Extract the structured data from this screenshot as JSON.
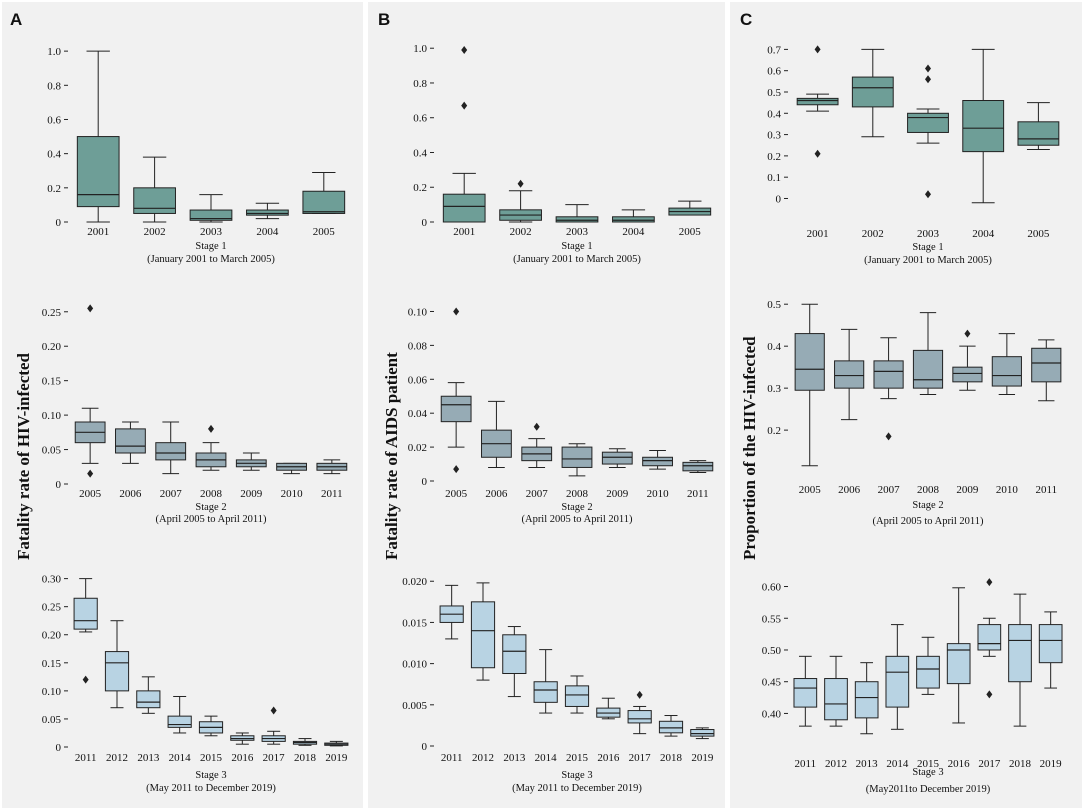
{
  "panels": {
    "a": {
      "letter": "A",
      "ylabel": "Fatality rate of HIV-infected"
    },
    "b": {
      "letter": "B",
      "ylabel": "Fatality rate of AIDS patient"
    },
    "c": {
      "letter": "C",
      "ylabel": "Proportion of the HIV-infected"
    }
  },
  "colors": {
    "stage1": "#6e9e97",
    "stage2": "#96abb5",
    "stage3": "#b8d3e3",
    "panel_bg": "#f1f1f1",
    "line": "#222222"
  },
  "chart_data": [
    {
      "id": "a1",
      "type": "box",
      "panel": "A",
      "color": "stage1",
      "categories": [
        "2001",
        "2002",
        "2003",
        "2004",
        "2005"
      ],
      "yticks": [
        {
          "v": 0,
          "label": "0"
        },
        {
          "v": 0.2,
          "label": "0.2"
        },
        {
          "v": 0.4,
          "label": "0.4"
        },
        {
          "v": 0.6,
          "label": "0.6"
        },
        {
          "v": 0.8,
          "label": "0.8"
        },
        {
          "v": 1.0,
          "label": "1.0"
        }
      ],
      "ylim": [
        0,
        1.03
      ],
      "boxes": [
        {
          "min": 0.0,
          "q1": 0.09,
          "median": 0.16,
          "q3": 0.5,
          "max": 1.0,
          "outliers": []
        },
        {
          "min": 0.0,
          "q1": 0.05,
          "median": 0.08,
          "q3": 0.2,
          "max": 0.38,
          "outliers": []
        },
        {
          "min": 0.0,
          "q1": 0.01,
          "median": 0.02,
          "q3": 0.07,
          "max": 0.16,
          "outliers": []
        },
        {
          "min": 0.02,
          "q1": 0.04,
          "median": 0.05,
          "q3": 0.07,
          "max": 0.11,
          "outliers": []
        },
        {
          "min": 0.05,
          "q1": 0.05,
          "median": 0.06,
          "q3": 0.18,
          "max": 0.29,
          "outliers": []
        }
      ],
      "xlabel_line1": "Stage 1",
      "xlabel_line2": "(January 2001 to March 2005)"
    },
    {
      "id": "a2",
      "type": "box",
      "panel": "A",
      "color": "stage2",
      "categories": [
        "2005",
        "2006",
        "2007",
        "2008",
        "2009",
        "2010",
        "2011"
      ],
      "yticks": [
        {
          "v": 0,
          "label": "0"
        },
        {
          "v": 0.05,
          "label": "0.05"
        },
        {
          "v": 0.1,
          "label": "0.10"
        },
        {
          "v": 0.15,
          "label": "0.15"
        },
        {
          "v": 0.2,
          "label": "0.20"
        },
        {
          "v": 0.25,
          "label": "0.25"
        }
      ],
      "ylim": [
        0,
        0.27
      ],
      "boxes": [
        {
          "min": 0.03,
          "q1": 0.06,
          "median": 0.075,
          "q3": 0.09,
          "max": 0.11,
          "outliers": [
            0.015,
            0.255
          ]
        },
        {
          "min": 0.03,
          "q1": 0.045,
          "median": 0.055,
          "q3": 0.08,
          "max": 0.09,
          "outliers": []
        },
        {
          "min": 0.015,
          "q1": 0.035,
          "median": 0.045,
          "q3": 0.06,
          "max": 0.09,
          "outliers": []
        },
        {
          "min": 0.02,
          "q1": 0.025,
          "median": 0.035,
          "q3": 0.045,
          "max": 0.06,
          "outliers": [
            0.08
          ]
        },
        {
          "min": 0.02,
          "q1": 0.025,
          "median": 0.03,
          "q3": 0.035,
          "max": 0.045,
          "outliers": []
        },
        {
          "min": 0.015,
          "q1": 0.02,
          "median": 0.025,
          "q3": 0.03,
          "max": 0.03,
          "outliers": []
        },
        {
          "min": 0.015,
          "q1": 0.02,
          "median": 0.025,
          "q3": 0.03,
          "max": 0.035,
          "outliers": []
        }
      ],
      "xlabel_line1": "Stage 2",
      "xlabel_line2": "(April 2005 to April 2011)"
    },
    {
      "id": "a3",
      "type": "box",
      "panel": "A",
      "color": "stage3",
      "categories": [
        "2011",
        "2012",
        "2013",
        "2014",
        "2015",
        "2016",
        "2017",
        "2018",
        "2019"
      ],
      "yticks": [
        {
          "v": 0,
          "label": "0"
        },
        {
          "v": 0.05,
          "label": "0.05"
        },
        {
          "v": 0.1,
          "label": "0.10"
        },
        {
          "v": 0.15,
          "label": "0.15"
        },
        {
          "v": 0.2,
          "label": "0.20"
        },
        {
          "v": 0.25,
          "label": "0.25"
        },
        {
          "v": 0.3,
          "label": "0.30"
        }
      ],
      "ylim": [
        0,
        0.31
      ],
      "boxes": [
        {
          "min": 0.205,
          "q1": 0.21,
          "median": 0.225,
          "q3": 0.265,
          "max": 0.3,
          "outliers": [
            0.12
          ]
        },
        {
          "min": 0.07,
          "q1": 0.1,
          "median": 0.15,
          "q3": 0.17,
          "max": 0.225,
          "outliers": []
        },
        {
          "min": 0.06,
          "q1": 0.07,
          "median": 0.08,
          "q3": 0.1,
          "max": 0.125,
          "outliers": []
        },
        {
          "min": 0.025,
          "q1": 0.035,
          "median": 0.04,
          "q3": 0.055,
          "max": 0.09,
          "outliers": []
        },
        {
          "min": 0.02,
          "q1": 0.025,
          "median": 0.035,
          "q3": 0.045,
          "max": 0.055,
          "outliers": []
        },
        {
          "min": 0.005,
          "q1": 0.012,
          "median": 0.015,
          "q3": 0.02,
          "max": 0.025,
          "outliers": []
        },
        {
          "min": 0.005,
          "q1": 0.01,
          "median": 0.015,
          "q3": 0.02,
          "max": 0.028,
          "outliers": [
            0.065
          ]
        },
        {
          "min": 0.003,
          "q1": 0.005,
          "median": 0.008,
          "q3": 0.01,
          "max": 0.015,
          "outliers": []
        },
        {
          "min": 0.002,
          "q1": 0.003,
          "median": 0.005,
          "q3": 0.007,
          "max": 0.01,
          "outliers": []
        }
      ],
      "xlabel_line1": "Stage 3",
      "xlabel_line2": "(May 2011 to December 2019)"
    },
    {
      "id": "b1",
      "type": "box",
      "panel": "B",
      "color": "stage1",
      "categories": [
        "2001",
        "2002",
        "2003",
        "2004",
        "2005"
      ],
      "yticks": [
        {
          "v": 0,
          "label": "0"
        },
        {
          "v": 0.2,
          "label": "0.2"
        },
        {
          "v": 0.4,
          "label": "0.4"
        },
        {
          "v": 0.6,
          "label": "0.6"
        },
        {
          "v": 0.8,
          "label": "0.8"
        },
        {
          "v": 1.0,
          "label": "1.0"
        }
      ],
      "ylim": [
        0,
        1.03
      ],
      "boxes": [
        {
          "min": 0.0,
          "q1": 0.0,
          "median": 0.09,
          "q3": 0.16,
          "max": 0.28,
          "outliers": [
            0.67,
            0.99
          ]
        },
        {
          "min": 0.0,
          "q1": 0.01,
          "median": 0.04,
          "q3": 0.07,
          "max": 0.18,
          "outliers": [
            0.22
          ]
        },
        {
          "min": 0.0,
          "q1": 0.0,
          "median": 0.01,
          "q3": 0.03,
          "max": 0.1,
          "outliers": []
        },
        {
          "min": 0.0,
          "q1": 0.0,
          "median": 0.01,
          "q3": 0.03,
          "max": 0.07,
          "outliers": []
        },
        {
          "min": 0.04,
          "q1": 0.04,
          "median": 0.06,
          "q3": 0.08,
          "max": 0.12,
          "outliers": []
        }
      ],
      "xlabel_line1": "Stage 1",
      "xlabel_line2": "(January 2001 to March 2005)"
    },
    {
      "id": "b2",
      "type": "box",
      "panel": "B",
      "color": "stage2",
      "categories": [
        "2005",
        "2006",
        "2007",
        "2008",
        "2009",
        "2010",
        "2011"
      ],
      "yticks": [
        {
          "v": 0,
          "label": "0"
        },
        {
          "v": 0.02,
          "label": "0.02"
        },
        {
          "v": 0.04,
          "label": "0.04"
        },
        {
          "v": 0.06,
          "label": "0.06"
        },
        {
          "v": 0.08,
          "label": "0.08"
        },
        {
          "v": 0.1,
          "label": "0.10"
        }
      ],
      "ylim": [
        0,
        0.105
      ],
      "boxes": [
        {
          "min": 0.02,
          "q1": 0.035,
          "median": 0.045,
          "q3": 0.05,
          "max": 0.058,
          "outliers": [
            0.007,
            0.1
          ]
        },
        {
          "min": 0.008,
          "q1": 0.014,
          "median": 0.022,
          "q3": 0.03,
          "max": 0.047,
          "outliers": []
        },
        {
          "min": 0.008,
          "q1": 0.012,
          "median": 0.016,
          "q3": 0.02,
          "max": 0.025,
          "outliers": [
            0.032
          ]
        },
        {
          "min": 0.003,
          "q1": 0.008,
          "median": 0.013,
          "q3": 0.02,
          "max": 0.022,
          "outliers": []
        },
        {
          "min": 0.008,
          "q1": 0.01,
          "median": 0.014,
          "q3": 0.017,
          "max": 0.019,
          "outliers": []
        },
        {
          "min": 0.007,
          "q1": 0.009,
          "median": 0.012,
          "q3": 0.014,
          "max": 0.018,
          "outliers": []
        },
        {
          "min": 0.005,
          "q1": 0.006,
          "median": 0.009,
          "q3": 0.011,
          "max": 0.012,
          "outliers": []
        }
      ],
      "xlabel_line1": "Stage 2",
      "xlabel_line2": "(April 2005 to April 2011)"
    },
    {
      "id": "b3",
      "type": "box",
      "panel": "B",
      "color": "stage3",
      "categories": [
        "2011",
        "2012",
        "2013",
        "2014",
        "2015",
        "2016",
        "2017",
        "2018",
        "2019"
      ],
      "yticks": [
        {
          "v": 0,
          "label": "0"
        },
        {
          "v": 0.005,
          "label": "0.005"
        },
        {
          "v": 0.01,
          "label": "0.010"
        },
        {
          "v": 0.015,
          "label": "0.015"
        },
        {
          "v": 0.02,
          "label": "0.020"
        }
      ],
      "ylim": [
        0,
        0.021
      ],
      "boxes": [
        {
          "min": 0.013,
          "q1": 0.015,
          "median": 0.016,
          "q3": 0.017,
          "max": 0.0195,
          "outliers": []
        },
        {
          "min": 0.008,
          "q1": 0.0095,
          "median": 0.014,
          "q3": 0.0175,
          "max": 0.0198,
          "outliers": []
        },
        {
          "min": 0.006,
          "q1": 0.0088,
          "median": 0.0115,
          "q3": 0.0135,
          "max": 0.0145,
          "outliers": []
        },
        {
          "min": 0.004,
          "q1": 0.0053,
          "median": 0.0068,
          "q3": 0.0078,
          "max": 0.0117,
          "outliers": []
        },
        {
          "min": 0.004,
          "q1": 0.0048,
          "median": 0.0062,
          "q3": 0.0073,
          "max": 0.0085,
          "outliers": []
        },
        {
          "min": 0.0033,
          "q1": 0.0035,
          "median": 0.004,
          "q3": 0.0046,
          "max": 0.0058,
          "outliers": []
        },
        {
          "min": 0.0015,
          "q1": 0.0028,
          "median": 0.0033,
          "q3": 0.0043,
          "max": 0.0048,
          "outliers": [
            0.0062
          ]
        },
        {
          "min": 0.0012,
          "q1": 0.0016,
          "median": 0.0022,
          "q3": 0.003,
          "max": 0.0037,
          "outliers": []
        },
        {
          "min": 0.0009,
          "q1": 0.0012,
          "median": 0.0015,
          "q3": 0.002,
          "max": 0.0022,
          "outliers": []
        }
      ],
      "xlabel_line1": "Stage 3",
      "xlabel_line2": "(May 2011 to December 2019)"
    },
    {
      "id": "c1",
      "type": "box",
      "panel": "C",
      "color": "stage1",
      "categories": [
        "2001",
        "2002",
        "2003",
        "2004",
        "2005"
      ],
      "yticks": [
        {
          "v": 0,
          "label": "0"
        },
        {
          "v": 0.1,
          "label": "0.1"
        },
        {
          "v": 0.2,
          "label": "0.2"
        },
        {
          "v": 0.3,
          "label": "0.3"
        },
        {
          "v": 0.4,
          "label": "0.4"
        },
        {
          "v": 0.5,
          "label": "0.5"
        },
        {
          "v": 0.6,
          "label": "0.6"
        },
        {
          "v": 0.7,
          "label": "0.7"
        }
      ],
      "ylim": [
        -0.04,
        0.73
      ],
      "boxes": [
        {
          "min": 0.41,
          "q1": 0.44,
          "median": 0.46,
          "q3": 0.47,
          "max": 0.49,
          "outliers": [
            0.21,
            0.7
          ]
        },
        {
          "min": 0.29,
          "q1": 0.43,
          "median": 0.52,
          "q3": 0.57,
          "max": 0.7,
          "outliers": []
        },
        {
          "min": 0.26,
          "q1": 0.31,
          "median": 0.38,
          "q3": 0.4,
          "max": 0.42,
          "outliers": [
            0.02,
            0.56,
            0.61
          ]
        },
        {
          "min": -0.02,
          "q1": 0.22,
          "median": 0.33,
          "q3": 0.46,
          "max": 0.7,
          "outliers": []
        },
        {
          "min": 0.23,
          "q1": 0.25,
          "median": 0.28,
          "q3": 0.36,
          "max": 0.45,
          "outliers": []
        }
      ],
      "xlabel_line1": "Stage 1",
      "xlabel_line2": "(January 2001 to March 2005)"
    },
    {
      "id": "c2",
      "type": "box",
      "panel": "C",
      "color": "stage2",
      "categories": [
        "2005",
        "2006",
        "2007",
        "2008",
        "2009",
        "2010",
        "2011"
      ],
      "yticks": [
        {
          "v": 0.2,
          "label": "0.2"
        },
        {
          "v": 0.3,
          "label": "0.3"
        },
        {
          "v": 0.4,
          "label": "0.4"
        },
        {
          "v": 0.5,
          "label": "0.5"
        }
      ],
      "ylim": [
        0.105,
        0.51
      ],
      "boxes": [
        {
          "min": 0.115,
          "q1": 0.295,
          "median": 0.345,
          "q3": 0.43,
          "max": 0.5,
          "outliers": []
        },
        {
          "min": 0.225,
          "q1": 0.3,
          "median": 0.33,
          "q3": 0.365,
          "max": 0.44,
          "outliers": []
        },
        {
          "min": 0.275,
          "q1": 0.3,
          "median": 0.34,
          "q3": 0.365,
          "max": 0.42,
          "outliers": [
            0.185
          ]
        },
        {
          "min": 0.285,
          "q1": 0.3,
          "median": 0.32,
          "q3": 0.39,
          "max": 0.48,
          "outliers": []
        },
        {
          "min": 0.295,
          "q1": 0.315,
          "median": 0.335,
          "q3": 0.35,
          "max": 0.4,
          "outliers": [
            0.43
          ]
        },
        {
          "min": 0.285,
          "q1": 0.305,
          "median": 0.33,
          "q3": 0.375,
          "max": 0.43,
          "outliers": []
        },
        {
          "min": 0.27,
          "q1": 0.315,
          "median": 0.36,
          "q3": 0.395,
          "max": 0.415,
          "outliers": []
        }
      ],
      "xlabel_line1": "Stage 2",
      "xlabel_line2": "(April 2005 to April 2011)"
    },
    {
      "id": "c3",
      "type": "box",
      "panel": "C",
      "color": "stage3",
      "categories": [
        "2011",
        "2012",
        "2013",
        "2014",
        "2015",
        "2016",
        "2017",
        "2018",
        "2019"
      ],
      "yticks": [
        {
          "v": 0.4,
          "label": "0.40"
        },
        {
          "v": 0.45,
          "label": "0.45"
        },
        {
          "v": 0.5,
          "label": "0.50"
        },
        {
          "v": 0.55,
          "label": "0.55"
        },
        {
          "v": 0.6,
          "label": "0.60"
        }
      ],
      "ylim": [
        0.355,
        0.615
      ],
      "boxes": [
        {
          "min": 0.38,
          "q1": 0.41,
          "median": 0.44,
          "q3": 0.455,
          "max": 0.49,
          "outliers": []
        },
        {
          "min": 0.38,
          "q1": 0.39,
          "median": 0.415,
          "q3": 0.455,
          "max": 0.49,
          "outliers": []
        },
        {
          "min": 0.368,
          "q1": 0.393,
          "median": 0.425,
          "q3": 0.45,
          "max": 0.48,
          "outliers": []
        },
        {
          "min": 0.375,
          "q1": 0.41,
          "median": 0.465,
          "q3": 0.49,
          "max": 0.54,
          "outliers": []
        },
        {
          "min": 0.43,
          "q1": 0.44,
          "median": 0.47,
          "q3": 0.49,
          "max": 0.52,
          "outliers": []
        },
        {
          "min": 0.385,
          "q1": 0.447,
          "median": 0.5,
          "q3": 0.51,
          "max": 0.598,
          "outliers": []
        },
        {
          "min": 0.49,
          "q1": 0.5,
          "median": 0.51,
          "q3": 0.54,
          "max": 0.55,
          "outliers": [
            0.43,
            0.607
          ]
        },
        {
          "min": 0.38,
          "q1": 0.45,
          "median": 0.515,
          "q3": 0.54,
          "max": 0.588,
          "outliers": []
        },
        {
          "min": 0.44,
          "q1": 0.48,
          "median": 0.515,
          "q3": 0.54,
          "max": 0.56,
          "outliers": []
        }
      ],
      "xlabel_line1": "Stage 3",
      "xlabel_line2": "(May2011to December 2019)"
    }
  ]
}
